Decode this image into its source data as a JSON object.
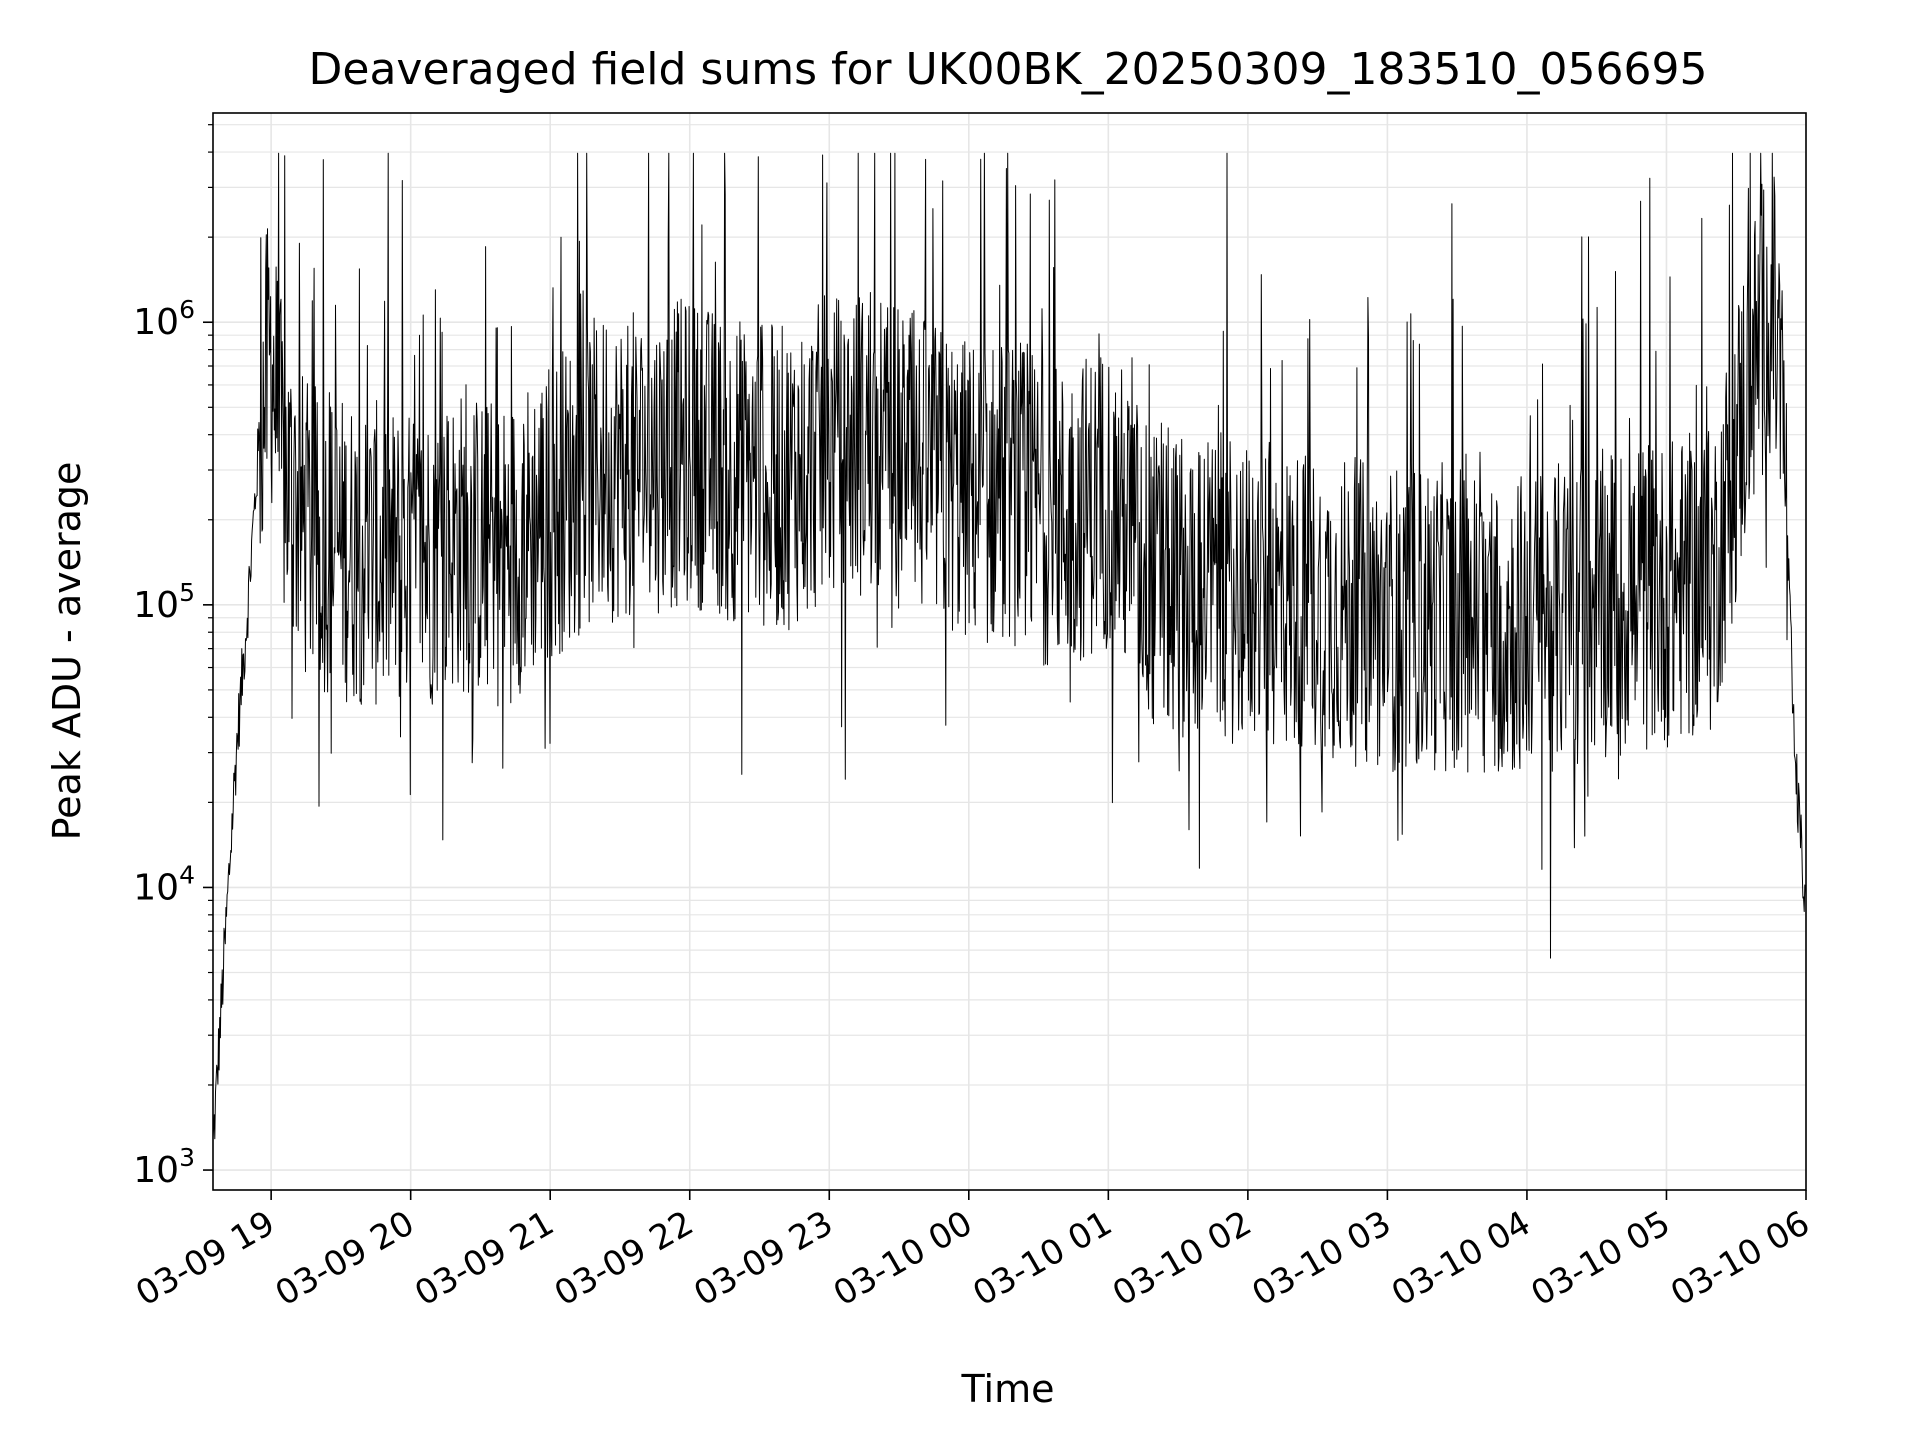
{
  "chart_data": {
    "type": "line",
    "title": "Deaveraged field sums for UK00BK_20250309_183510_056695",
    "xlabel": "Time",
    "ylabel": "Peak ADU - average",
    "yscale": "log",
    "ylim": [
      850,
      5500000
    ],
    "xlim": [
      "2025-03-09 18:35",
      "2025-03-10 06:00"
    ],
    "grid": "major and minor",
    "x_ticks": [
      "03-09 19",
      "03-09 20",
      "03-09 21",
      "03-09 22",
      "03-09 23",
      "03-10 00",
      "03-10 01",
      "03-10 02",
      "03-10 03",
      "03-10 04",
      "03-10 05",
      "03-10 06"
    ],
    "y_ticks": [
      {
        "value": 1000,
        "base": "10",
        "exp": "3"
      },
      {
        "value": 10000,
        "base": "10",
        "exp": "4"
      },
      {
        "value": 100000,
        "base": "10",
        "exp": "5"
      },
      {
        "value": 1000000,
        "base": "10",
        "exp": "6"
      }
    ],
    "series": [
      {
        "color": "#000000",
        "x": [
          "03-09 18:35",
          "03-09 18:40",
          "03-09 18:45",
          "03-09 18:50",
          "03-09 18:55",
          "03-09 19:00",
          "03-09 19:05",
          "03-09 19:15",
          "03-09 19:30",
          "03-09 19:45",
          "03-09 20:00",
          "03-09 20:20",
          "03-09 20:40",
          "03-09 21:00",
          "03-09 21:20",
          "03-09 21:40",
          "03-09 22:00",
          "03-09 22:20",
          "03-09 22:40",
          "03-09 23:00",
          "03-09 23:20",
          "03-09 23:40",
          "03-10 00:00",
          "03-10 00:20",
          "03-10 00:40",
          "03-10 01:00",
          "03-10 01:20",
          "03-10 01:40",
          "03-10 02:00",
          "03-10 02:30",
          "03-10 03:00",
          "03-10 03:30",
          "03-10 04:00",
          "03-10 04:30",
          "03-10 05:00",
          "03-10 05:20",
          "03-10 05:35",
          "03-10 05:45",
          "03-10 05:50",
          "03-10 05:55",
          "03-10 06:00"
        ],
        "y": [
          1200,
          6000,
          30000,
          100000,
          400000,
          800000,
          300000,
          180000,
          160000,
          150000,
          140000,
          170000,
          150000,
          220000,
          300000,
          320000,
          350000,
          300000,
          280000,
          350000,
          380000,
          300000,
          250000,
          250000,
          200000,
          250000,
          120000,
          120000,
          110000,
          100000,
          90000,
          90000,
          85000,
          100000,
          110000,
          120000,
          600000,
          1200000,
          500000,
          30000,
          8000
        ]
      }
    ]
  }
}
